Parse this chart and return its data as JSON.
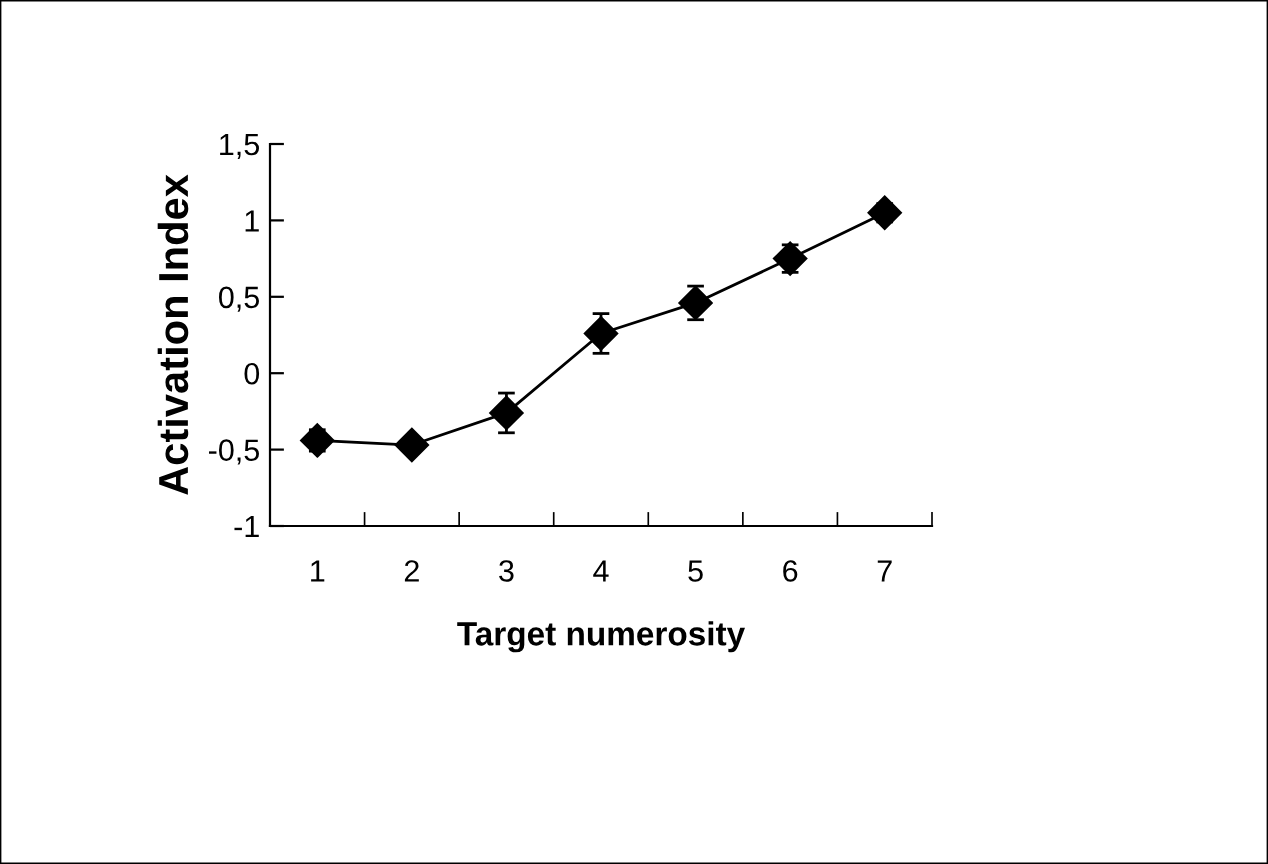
{
  "chart_data": {
    "type": "line",
    "xlabel": "Target numerosity",
    "ylabel": "Activation Index",
    "categories": [
      "1",
      "2",
      "3",
      "4",
      "5",
      "6",
      "7"
    ],
    "series": [
      {
        "color": "#000000",
        "values": [
          -0.44,
          -0.47,
          -0.26,
          0.26,
          0.46,
          0.75,
          1.05
        ],
        "errors": [
          0.07,
          0.05,
          0.13,
          0.13,
          0.11,
          0.09,
          0.06
        ]
      }
    ],
    "ylim": [
      -1,
      1.5
    ],
    "yticks": [
      {
        "value": -1,
        "label": "-1"
      },
      {
        "value": -0.5,
        "label": "-0,5"
      },
      0,
      {
        "value": 0.5,
        "label": "0,5"
      },
      1,
      {
        "value": 1.5,
        "label": "1,5"
      }
    ],
    "marker": "diamond",
    "line_style": "solid",
    "grid": false,
    "legend": false
  }
}
